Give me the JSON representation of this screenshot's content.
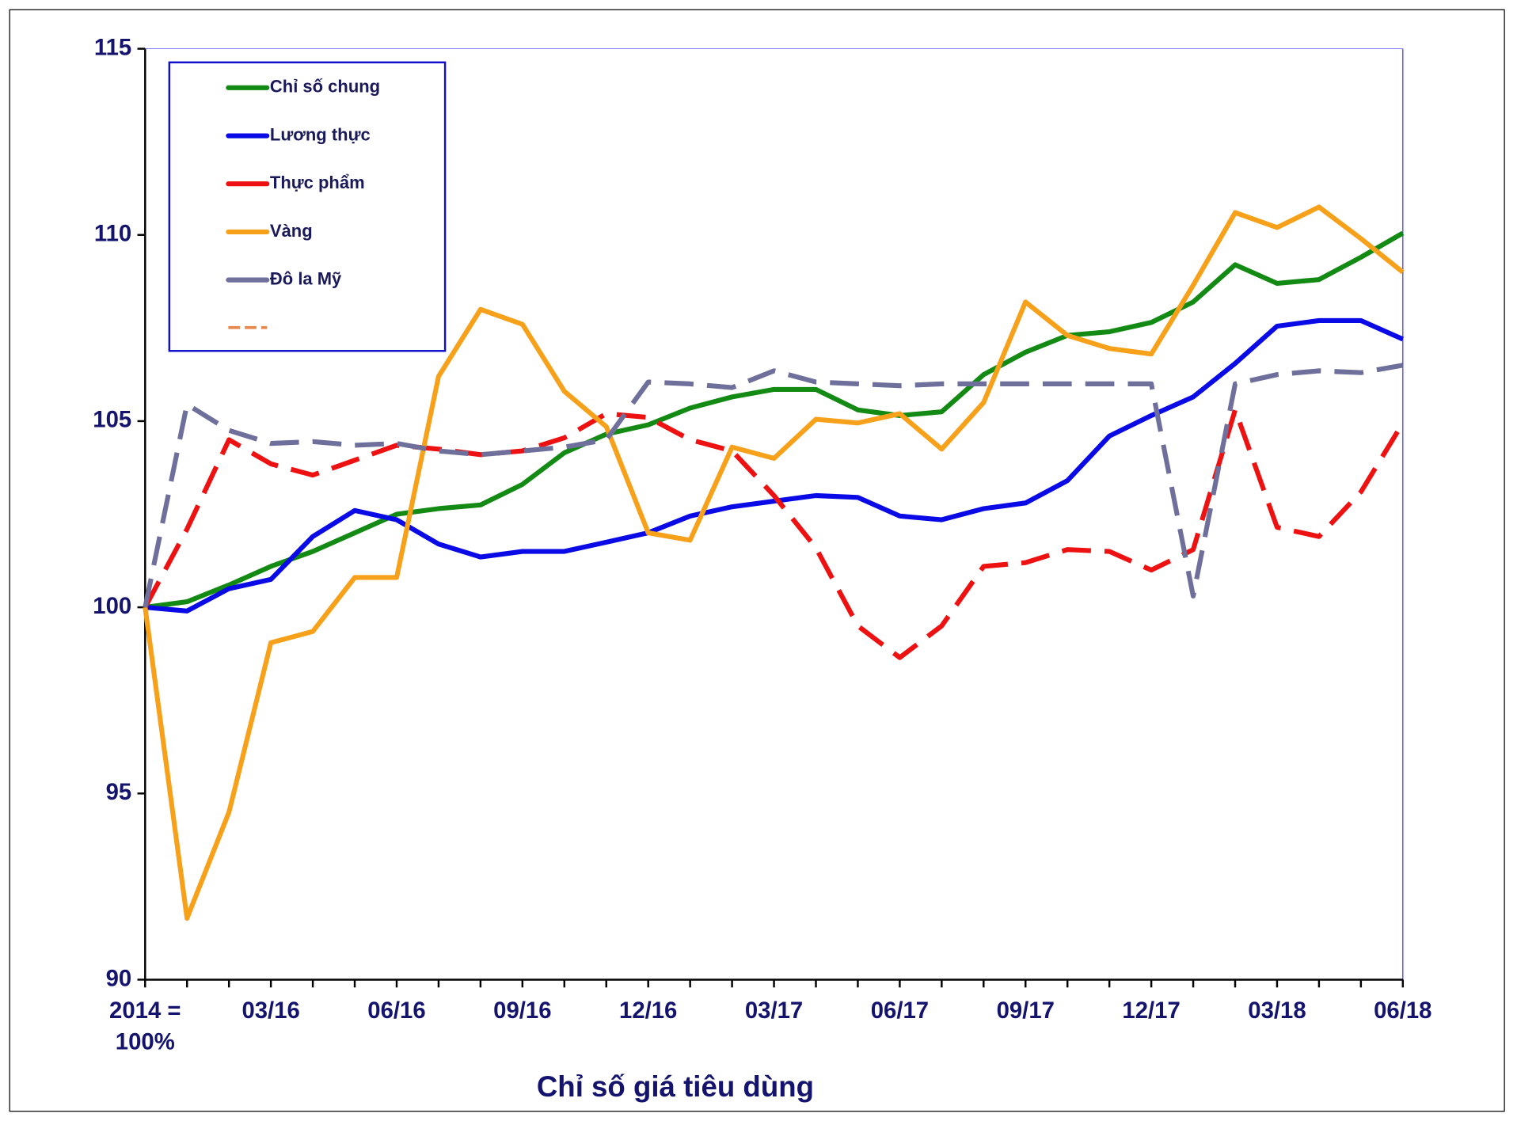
{
  "chart_data": {
    "type": "line",
    "x_title": "Chỉ số giá tiêu dùng",
    "categories": [
      "2014 = 100%",
      null,
      null,
      "03/16",
      null,
      null,
      "06/16",
      null,
      null,
      "09/16",
      null,
      null,
      "12/16",
      null,
      null,
      "03/17",
      null,
      null,
      "06/17",
      null,
      null,
      "09/17",
      null,
      null,
      "12/17",
      null,
      null,
      "03/18",
      null,
      null,
      "06/18"
    ],
    "ylim": [
      90,
      115
    ],
    "yticks": [
      90,
      95,
      100,
      105,
      110,
      115
    ],
    "series": [
      {
        "name": "Chỉ số chung",
        "color": "#138a13",
        "dashed": false,
        "values": [
          100,
          100.15,
          100.6,
          101.1,
          101.5,
          102.0,
          102.5,
          102.65,
          102.75,
          103.3,
          104.15,
          104.65,
          104.9,
          105.35,
          105.65,
          105.85,
          105.85,
          105.3,
          105.15,
          105.25,
          106.25,
          106.85,
          107.3,
          107.4,
          107.65,
          108.2,
          109.2,
          108.7,
          108.8,
          109.4,
          110.05
        ]
      },
      {
        "name": "Lương thực",
        "color": "#0a0ae6",
        "dashed": false,
        "values": [
          100,
          99.9,
          100.5,
          100.75,
          101.9,
          102.6,
          102.35,
          101.7,
          101.35,
          101.5,
          101.5,
          101.75,
          102.0,
          102.45,
          102.7,
          102.85,
          103.0,
          102.95,
          102.45,
          102.35,
          102.65,
          102.8,
          103.4,
          104.6,
          105.15,
          105.65,
          106.55,
          107.55,
          107.7,
          107.7,
          107.2
        ]
      },
      {
        "name": "Thực phẩm",
        "color": "#ee1111",
        "dashed": true,
        "values": [
          100,
          102.1,
          104.5,
          103.85,
          103.55,
          103.95,
          104.35,
          104.25,
          104.1,
          104.2,
          104.55,
          105.2,
          105.1,
          104.5,
          104.2,
          103.0,
          101.6,
          99.5,
          98.65,
          99.5,
          101.1,
          101.2,
          101.55,
          101.5,
          101.0,
          101.55,
          105.3,
          102.15,
          101.9,
          103.1,
          104.95
        ]
      },
      {
        "name": "Vàng",
        "color": "#f7a11b",
        "dashed": false,
        "values": [
          100,
          91.65,
          94.5,
          99.05,
          99.35,
          100.8,
          100.8,
          106.2,
          108.0,
          107.6,
          105.8,
          104.85,
          102.0,
          101.8,
          104.3,
          104.0,
          105.05,
          104.95,
          105.2,
          104.25,
          105.5,
          108.2,
          107.3,
          106.95,
          106.8,
          108.65,
          110.6,
          110.2,
          110.75,
          109.9,
          109.0
        ]
      },
      {
        "name": "Đô la Mỹ",
        "color": "#6f6f9c",
        "dashed": true,
        "values": [
          100,
          105.45,
          104.75,
          104.4,
          104.45,
          104.35,
          104.4,
          104.2,
          104.1,
          104.2,
          104.3,
          104.5,
          106.05,
          106.0,
          105.9,
          106.35,
          106.05,
          106.0,
          105.95,
          106.0,
          106.0,
          106.0,
          106.0,
          106.0,
          106.0,
          100.3,
          106.0,
          106.25,
          106.35,
          106.3,
          106.5
        ]
      }
    ]
  }
}
